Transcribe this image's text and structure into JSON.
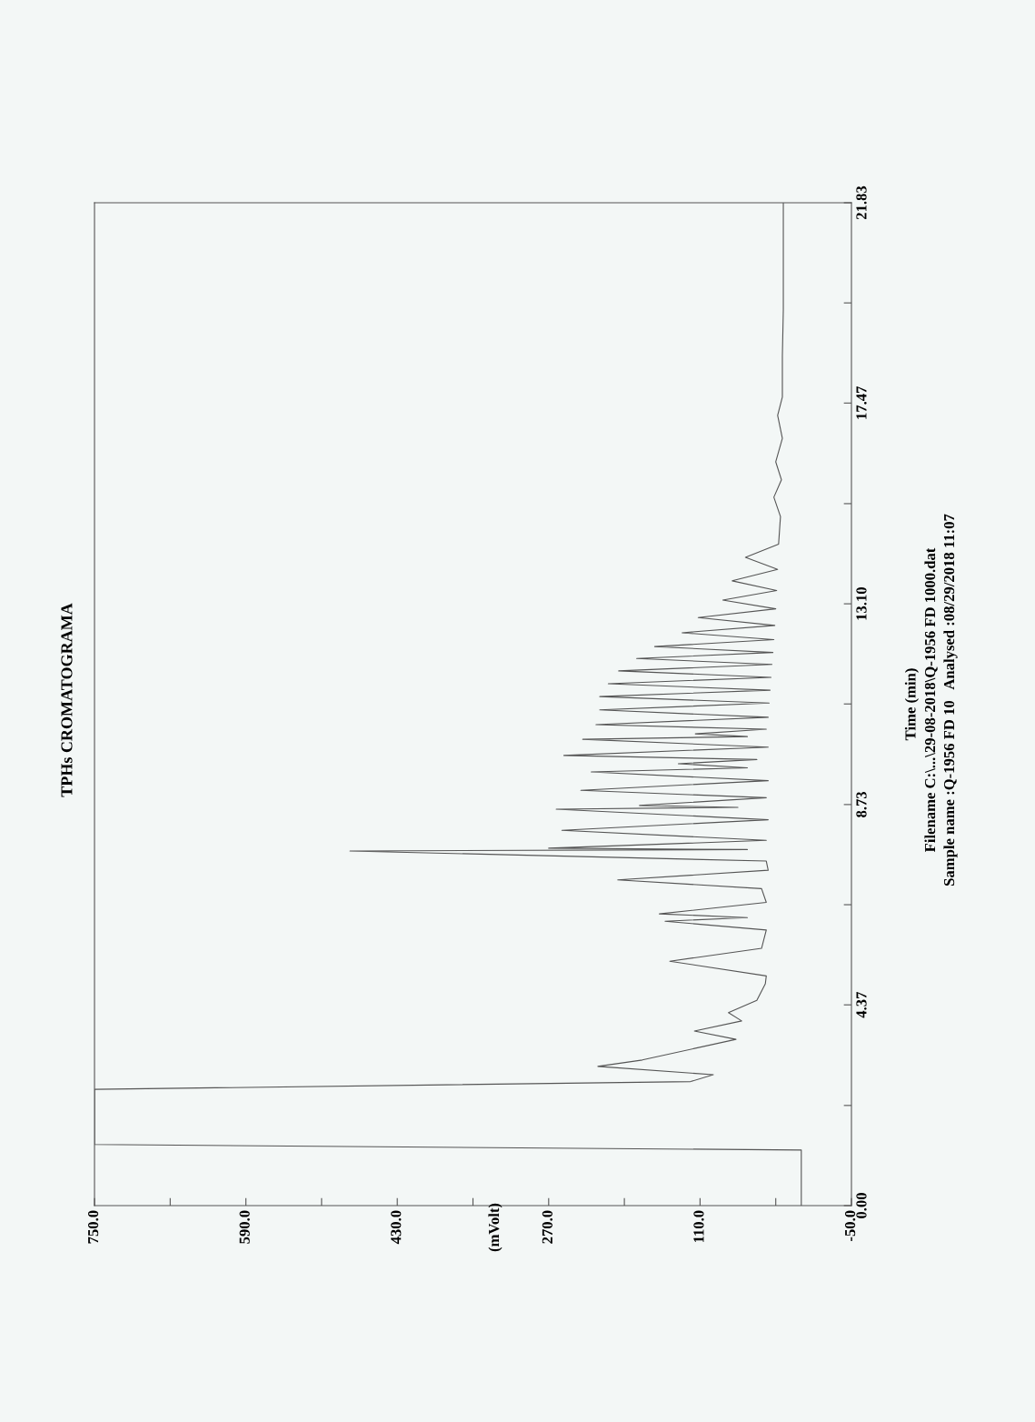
{
  "chart_data": {
    "type": "line",
    "title": "TPHs CROMATOGRAMA",
    "ylabel": "Time (min)",
    "annotations": [
      "(mVolt)",
      "Filename C:\\...\\29-08-2018\\Q-1956 FD 1000.dat",
      "Sample name :Q-1956 FD 10   Analysed :08/29/2018 11:07"
    ],
    "series": [
      {
        "color": "#555555",
        "x": [
          3,
          3,
          750,
          750,
          120,
          96,
          218,
          171,
          72,
          116,
          66,
          80,
          50,
          41,
          40,
          142,
          45,
          40,
          147,
          60,
          153,
          40,
          45,
          197,
          38,
          40,
          480,
          60,
          270,
          40,
          256,
          38,
          262,
          70,
          174,
          40,
          236,
          38,
          225,
          60,
          133,
          50,
          254,
          38,
          234,
          60,
          115,
          40,
          220,
          38,
          216,
          37,
          216,
          36,
          207,
          35,
          196,
          34,
          177,
          33,
          158,
          32,
          129,
          31,
          112,
          30,
          86,
          29,
          76,
          28,
          62,
          27,
          26,
          25,
          32,
          24,
          30,
          23,
          28,
          23,
          23,
          22,
          22,
          22,
          22
        ],
        "values": [
          0,
          1.21,
          1.33,
          2.53,
          2.7,
          2.85,
          3.03,
          3.17,
          3.62,
          3.8,
          4.02,
          4.2,
          4.47,
          4.83,
          5.0,
          5.32,
          5.6,
          6.0,
          6.19,
          6.27,
          6.35,
          6.6,
          6.9,
          7.09,
          7.3,
          7.5,
          7.72,
          7.75,
          7.78,
          7.95,
          8.17,
          8.4,
          8.63,
          8.67,
          8.71,
          8.88,
          9.04,
          9.25,
          9.44,
          9.53,
          9.62,
          9.71,
          9.8,
          9.98,
          10.15,
          10.21,
          10.27,
          10.37,
          10.47,
          10.63,
          10.79,
          10.94,
          11.08,
          11.22,
          11.36,
          11.5,
          11.64,
          11.78,
          11.91,
          12.04,
          12.17,
          12.32,
          12.47,
          12.63,
          12.8,
          12.99,
          13.18,
          13.39,
          13.6,
          13.85,
          14.11,
          14.4,
          14.7,
          15.0,
          15.42,
          15.8,
          16.19,
          16.7,
          17.2,
          17.6,
          18.5,
          19.5,
          20.5,
          21.2,
          21.83
        ]
      }
    ],
    "xlim": [
      750,
      -50
    ],
    "xticks": [
      {
        "value": 750,
        "label": "750.0"
      },
      {
        "value": 670,
        "label": null
      },
      {
        "value": 590,
        "label": "590.0"
      },
      {
        "value": 510,
        "label": null
      },
      {
        "value": 430,
        "label": "430.0"
      },
      {
        "value": 350,
        "label": null
      },
      {
        "value": 270,
        "label": "270.0"
      },
      {
        "value": 190,
        "label": null
      },
      {
        "value": 110,
        "label": "110.0"
      },
      {
        "value": 30,
        "label": null
      },
      {
        "value": -50,
        "label": "-50.0"
      }
    ],
    "ylim": [
      0,
      21.83
    ],
    "yticks": [
      {
        "value": 0,
        "label": "0.00"
      },
      {
        "value": 2.18,
        "label": null
      },
      {
        "value": 4.37,
        "label": "4.37"
      },
      {
        "value": 6.55,
        "label": null
      },
      {
        "value": 8.73,
        "label": "8.73"
      },
      {
        "value": 10.92,
        "label": null
      },
      {
        "value": 13.1,
        "label": "13.10"
      },
      {
        "value": 15.28,
        "label": null
      },
      {
        "value": 17.47,
        "label": "17.47"
      },
      {
        "value": 19.65,
        "label": null
      },
      {
        "value": 21.83,
        "label": "21.83"
      }
    ],
    "grid": false,
    "legend": false,
    "marker": "none",
    "line_style": "solid"
  }
}
